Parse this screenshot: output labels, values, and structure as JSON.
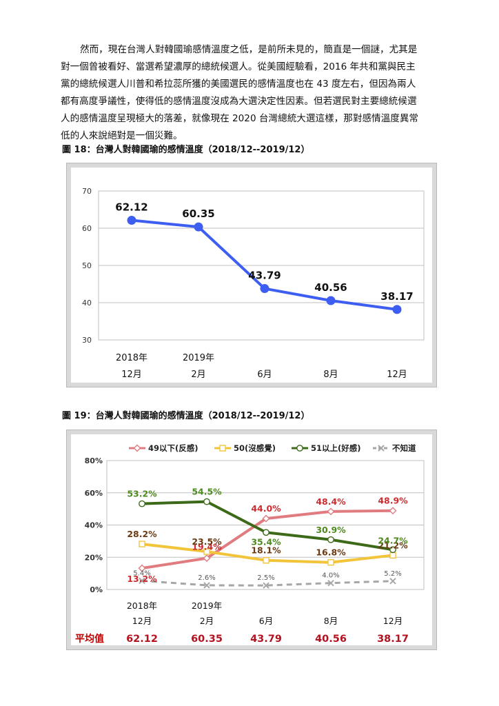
{
  "paragraph": {
    "lines": [
      "然而，現在台灣人對韓國瑜感情溫度之低，是前所未見的，簡直是一個謎，尤其是",
      "對一個曾被看好、當選希望濃厚的總統候選人。從美國經驗看，2016 年共和黨與民主",
      "黨的總統候選人川普和希拉蕊所獲的美國選民的感情溫度也在 43 度左右，但因為兩人",
      "都有高度爭議性，使得低的感情溫度沒成為大選決定性因素。但若選民對主要總統候選",
      "人的感情溫度呈現極大的落差，就像現在 2020 台灣總統大選這樣，那對感情溫度異常",
      "低的人來說絕對是一個災難。"
    ]
  },
  "figure18": {
    "title": "圖 18：台灣人對韓國瑜的感情溫度（2018/12--2019/12）",
    "x_labels_top": [
      "2018年",
      "2019年",
      "",
      "",
      ""
    ],
    "x_labels_bottom": [
      "12月",
      "2月",
      "6月",
      "8月",
      "12月"
    ]
  },
  "figure19": {
    "title": "圖 19：台灣人對韓國瑜的感情溫度（2018/12--2019/12）",
    "x_labels_top": [
      "2018年",
      "2019年",
      "",
      "",
      ""
    ],
    "x_labels_bottom": [
      "12月",
      "2月",
      "6月",
      "8月",
      "12月"
    ],
    "average_label": "平均值",
    "average_values": [
      "62.12",
      "60.35",
      "43.79",
      "40.56",
      "38.17"
    ]
  },
  "chart_data": [
    {
      "type": "line",
      "title": "",
      "categories": [
        "2018年12月",
        "2019年2月",
        "6月",
        "8月",
        "12月"
      ],
      "series": [
        {
          "values": [
            62.12,
            60.35,
            43.79,
            40.56,
            38.17
          ],
          "color": "#3d5ef0"
        }
      ],
      "data_labels": [
        "62.12",
        "60.35",
        "43.79",
        "40.56",
        "38.17"
      ],
      "ylim": [
        30,
        70
      ],
      "yticks": [
        30,
        40,
        50,
        60,
        70
      ],
      "grid": true,
      "legend": "none"
    },
    {
      "type": "line",
      "title": "",
      "categories": [
        "2018年12月",
        "2019年2月",
        "6月",
        "8月",
        "12月"
      ],
      "series": [
        {
          "name": "49以下(反感)",
          "values": [
            13.2,
            19.4,
            44.0,
            48.4,
            48.9
          ],
          "labels": [
            "13.2%",
            "19.4%",
            "44.0%",
            "48.4%",
            "48.9%"
          ],
          "color": "#e07b80",
          "label_color": "#cc2b30",
          "marker": "diamond"
        },
        {
          "name": "50(沒感覺)",
          "values": [
            28.2,
            23.5,
            18.1,
            16.8,
            21.2
          ],
          "labels": [
            "28.2%",
            "23.5%",
            "18.1%",
            "16.8%",
            "21.2%"
          ],
          "color": "#f2c43a",
          "label_color": "#6b3a12",
          "marker": "square"
        },
        {
          "name": "51以上(好感)",
          "values": [
            53.2,
            54.5,
            35.4,
            30.9,
            24.7
          ],
          "labels": [
            "53.2%",
            "54.5%",
            "35.4%",
            "30.9%",
            "24.7%"
          ],
          "color": "#3c6a18",
          "label_color": "#4e8a1e",
          "marker": "circle"
        },
        {
          "name": "不知道",
          "values": [
            5.4,
            2.6,
            2.5,
            4.0,
            5.2
          ],
          "labels": [
            "5.4%",
            "2.6%",
            "2.5%",
            "4.0%",
            "5.2%"
          ],
          "color": "#a6a6a6",
          "label_color": "#555555",
          "marker": "x",
          "dashed": true
        }
      ],
      "ylim": [
        0,
        80
      ],
      "yticks": [
        "0%",
        "20%",
        "40%",
        "60%",
        "80%"
      ],
      "grid": true,
      "legend": "top"
    }
  ]
}
